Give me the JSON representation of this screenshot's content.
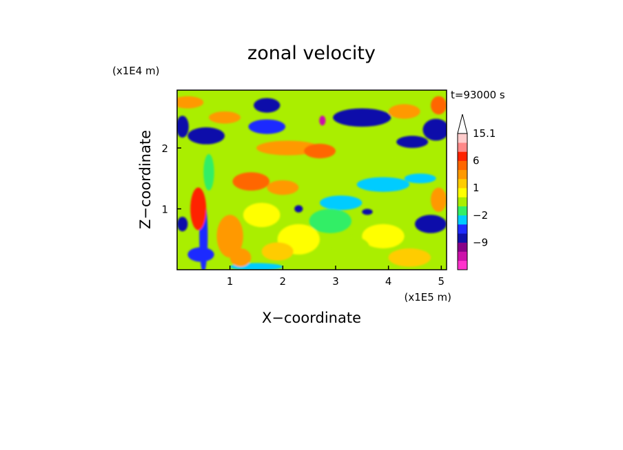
{
  "chart_data": {
    "type": "heatmap",
    "title": "zonal velocity",
    "xlabel": "X−coordinate",
    "ylabel": "Z−coordinate",
    "x_unit": "(x1E5 m)",
    "y_unit": "(x1E4 m)",
    "time_label": "t=93000 s",
    "xlim": [
      0.0,
      5.1
    ],
    "ylim": [
      0.0,
      2.95
    ],
    "x_ticks": [
      {
        "v": 1,
        "label": "1"
      },
      {
        "v": 2,
        "label": "2"
      },
      {
        "v": 3,
        "label": "3"
      },
      {
        "v": 4,
        "label": "4"
      },
      {
        "v": 5,
        "label": "5"
      }
    ],
    "y_ticks": [
      {
        "v": 1,
        "label": "1"
      },
      {
        "v": 2,
        "label": "2"
      }
    ],
    "colorbar": {
      "levels": [
        {
          "color": "#ff33cc"
        },
        {
          "color": "#cc11aa"
        },
        {
          "color": "#880088"
        },
        {
          "color": "#1010aa"
        },
        {
          "color": "#1e2bff"
        },
        {
          "color": "#00ccff"
        },
        {
          "color": "#33ee66"
        },
        {
          "color": "#aaee00"
        },
        {
          "color": "#ffff00"
        },
        {
          "color": "#ffcc00"
        },
        {
          "color": "#ff9900"
        },
        {
          "color": "#ff6600"
        },
        {
          "color": "#ff2200"
        },
        {
          "color": "#ff8888"
        },
        {
          "color": "#ffcccc"
        }
      ],
      "labels": [
        {
          "text": "15.1",
          "level": 14
        },
        {
          "text": "6",
          "level": 11
        },
        {
          "text": "1",
          "level": 8
        },
        {
          "text": "−2",
          "level": 5
        },
        {
          "text": "−9",
          "level": 2
        }
      ],
      "extend": "max"
    },
    "field_blobs": [
      {
        "x": 0.1,
        "z": 2.35,
        "rx": 0.12,
        "rz": 0.18,
        "level": 3
      },
      {
        "x": 0.55,
        "z": 2.2,
        "rx": 0.35,
        "rz": 0.14,
        "level": 3
      },
      {
        "x": 1.7,
        "z": 2.35,
        "rx": 0.35,
        "rz": 0.12,
        "level": 4
      },
      {
        "x": 1.7,
        "z": 2.7,
        "rx": 0.25,
        "rz": 0.12,
        "level": 3
      },
      {
        "x": 3.5,
        "z": 2.5,
        "rx": 0.55,
        "rz": 0.15,
        "level": 3
      },
      {
        "x": 2.75,
        "z": 2.45,
        "rx": 0.06,
        "rz": 0.08,
        "level": 1
      },
      {
        "x": 4.45,
        "z": 2.1,
        "rx": 0.3,
        "rz": 0.1,
        "level": 3
      },
      {
        "x": 4.9,
        "z": 2.3,
        "rx": 0.25,
        "rz": 0.18,
        "level": 3
      },
      {
        "x": 4.8,
        "z": 0.75,
        "rx": 0.3,
        "rz": 0.15,
        "level": 3
      },
      {
        "x": 0.1,
        "z": 0.75,
        "rx": 0.1,
        "rz": 0.12,
        "level": 3
      },
      {
        "x": 0.5,
        "z": 0.55,
        "rx": 0.08,
        "rz": 0.6,
        "level": 4
      },
      {
        "x": 2.3,
        "z": 1.0,
        "rx": 0.08,
        "rz": 0.06,
        "level": 3
      },
      {
        "x": 3.6,
        "z": 0.95,
        "rx": 0.1,
        "rz": 0.05,
        "level": 3
      },
      {
        "x": 3.9,
        "z": 1.4,
        "rx": 0.5,
        "rz": 0.12,
        "level": 5
      },
      {
        "x": 3.1,
        "z": 1.1,
        "rx": 0.4,
        "rz": 0.12,
        "level": 5
      },
      {
        "x": 4.6,
        "z": 1.5,
        "rx": 0.3,
        "rz": 0.08,
        "level": 5
      },
      {
        "x": 0.45,
        "z": 0.25,
        "rx": 0.25,
        "rz": 0.12,
        "level": 4
      },
      {
        "x": 1.5,
        "z": 0.05,
        "rx": 0.5,
        "rz": 0.06,
        "level": 5
      },
      {
        "x": 2.1,
        "z": 2.0,
        "rx": 0.6,
        "rz": 0.12,
        "level": 10
      },
      {
        "x": 2.7,
        "z": 1.95,
        "rx": 0.3,
        "rz": 0.12,
        "level": 11
      },
      {
        "x": 1.4,
        "z": 1.45,
        "rx": 0.35,
        "rz": 0.15,
        "level": 11
      },
      {
        "x": 2.0,
        "z": 1.35,
        "rx": 0.3,
        "rz": 0.12,
        "level": 10
      },
      {
        "x": 0.2,
        "z": 2.75,
        "rx": 0.3,
        "rz": 0.1,
        "level": 10
      },
      {
        "x": 0.9,
        "z": 2.5,
        "rx": 0.3,
        "rz": 0.1,
        "level": 10
      },
      {
        "x": 4.95,
        "z": 2.7,
        "rx": 0.15,
        "rz": 0.15,
        "level": 11
      },
      {
        "x": 4.3,
        "z": 2.6,
        "rx": 0.3,
        "rz": 0.12,
        "level": 10
      },
      {
        "x": 1.0,
        "z": 0.55,
        "rx": 0.25,
        "rz": 0.35,
        "level": 10
      },
      {
        "x": 1.2,
        "z": 0.2,
        "rx": 0.2,
        "rz": 0.15,
        "level": 10
      },
      {
        "x": 4.95,
        "z": 1.15,
        "rx": 0.15,
        "rz": 0.2,
        "level": 10
      },
      {
        "x": 3.9,
        "z": 0.55,
        "rx": 0.4,
        "rz": 0.2,
        "level": 8
      },
      {
        "x": 2.3,
        "z": 0.5,
        "rx": 0.4,
        "rz": 0.25,
        "level": 8
      },
      {
        "x": 1.6,
        "z": 0.9,
        "rx": 0.35,
        "rz": 0.2,
        "level": 8
      },
      {
        "x": 3.3,
        "z": 0.35,
        "rx": 0.35,
        "rz": 0.2,
        "level": 7
      },
      {
        "x": 2.9,
        "z": 0.8,
        "rx": 0.4,
        "rz": 0.2,
        "level": 6
      },
      {
        "x": 0.6,
        "z": 1.6,
        "rx": 0.1,
        "rz": 0.3,
        "level": 6
      },
      {
        "x": 4.4,
        "z": 0.2,
        "rx": 0.4,
        "rz": 0.15,
        "level": 9
      },
      {
        "x": 1.9,
        "z": 0.3,
        "rx": 0.3,
        "rz": 0.15,
        "level": 9
      },
      {
        "x": 0.4,
        "z": 1.0,
        "rx": 0.15,
        "rz": 0.35,
        "level": 12
      },
      {
        "x": 4.1,
        "z": 1.9,
        "rx": 0.2,
        "rz": 0.08,
        "level": 7
      }
    ]
  }
}
